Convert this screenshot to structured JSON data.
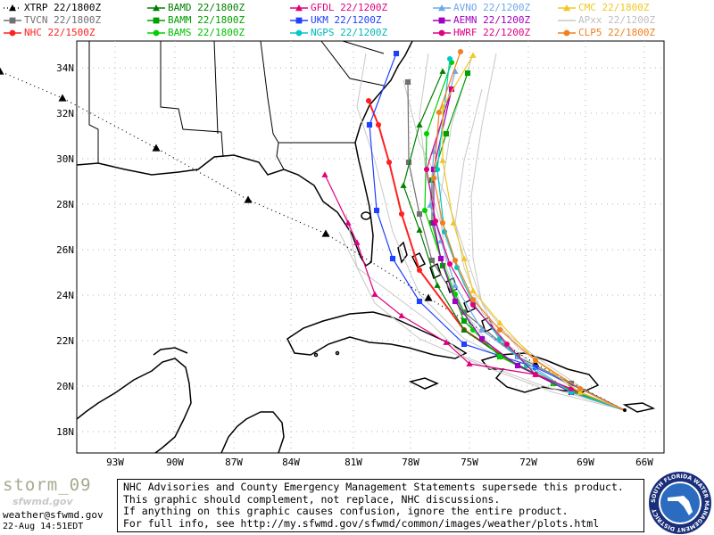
{
  "legend": [
    {
      "code": "XTRP",
      "time": "22/1800Z",
      "color": "#000000",
      "marker": "triangle",
      "dash": "dot",
      "text_color": "#000000"
    },
    {
      "code": "BAMD",
      "time": "22/1800Z",
      "color": "#008000",
      "marker": "triangle",
      "dash": "solid",
      "text_color": "#008000"
    },
    {
      "code": "GFDL",
      "time": "22/1200Z",
      "color": "#e0007f",
      "marker": "triangle",
      "dash": "solid",
      "text_color": "#e0007f"
    },
    {
      "code": "AVNO",
      "time": "22/1200Z",
      "color": "#6ea8e8",
      "marker": "triangle",
      "dash": "solid",
      "text_color": "#6ea8e8"
    },
    {
      "code": "CMC",
      "time": "22/1800Z",
      "color": "#f0c820",
      "marker": "triangle",
      "dash": "solid",
      "text_color": "#f0c820"
    },
    {
      "code": "TVCN",
      "time": "22/1800Z",
      "color": "#707070",
      "marker": "square",
      "dash": "solid",
      "text_color": "#707070"
    },
    {
      "code": "BAMM",
      "time": "22/1800Z",
      "color": "#00a000",
      "marker": "square",
      "dash": "solid",
      "text_color": "#00a000"
    },
    {
      "code": "UKM",
      "time": "22/1200Z",
      "color": "#2040ff",
      "marker": "square",
      "dash": "solid",
      "text_color": "#2040ff"
    },
    {
      "code": "AEMN",
      "time": "22/1200Z",
      "color": "#a000c0",
      "marker": "square",
      "dash": "solid",
      "text_color": "#a000c0"
    },
    {
      "code": "APxx",
      "time": "22/1200Z",
      "color": "#c8c8c8",
      "marker": "none",
      "dash": "solid",
      "text_color": "#c0c0c0"
    },
    {
      "code": "NHC",
      "time": "22/1500Z",
      "color": "#ff2020",
      "marker": "circle",
      "dash": "solid",
      "text_color": "#ff2020"
    },
    {
      "code": "BAMS",
      "time": "22/1800Z",
      "color": "#00d000",
      "marker": "circle",
      "dash": "solid",
      "text_color": "#00c000"
    },
    {
      "code": "NGPS",
      "time": "22/1200Z",
      "color": "#00c8c8",
      "marker": "circle",
      "dash": "solid",
      "text_color": "#00b8b8"
    },
    {
      "code": "HWRF",
      "time": "22/1200Z",
      "color": "#e00080",
      "marker": "circle",
      "dash": "solid",
      "text_color": "#e00080"
    },
    {
      "code": "CLP5",
      "time": "22/1800Z",
      "color": "#f08020",
      "marker": "circle",
      "dash": "solid",
      "text_color": "#f08020"
    }
  ],
  "axes": {
    "lat_labels": [
      "34N",
      "32N",
      "30N",
      "28N",
      "26N",
      "24N",
      "22N",
      "20N",
      "18N"
    ],
    "lon_labels": [
      "93W",
      "90W",
      "87W",
      "84W",
      "81W",
      "78W",
      "75W",
      "72W",
      "69W",
      "66W"
    ]
  },
  "footer": {
    "storm": "storm_09",
    "site": "sfwmd.gov",
    "email": "weather@sfwmd.gov",
    "date": "22-Aug 14:51EDT"
  },
  "disclaimer": [
    "NHC Advisories and County Emergency Management Statements supersede this product.",
    "This graphic should complement, not replace, NHC discussions.",
    "If anything on this graphic causes confusion, ignore the entire product.",
    "For full info, see  http://my.sfwmd.gov/sfwmd/common/images/weather/plots.html"
  ],
  "seal": {
    "text": "SOUTH FLORIDA WATER MANAGEMENT DISTRICT"
  }
}
